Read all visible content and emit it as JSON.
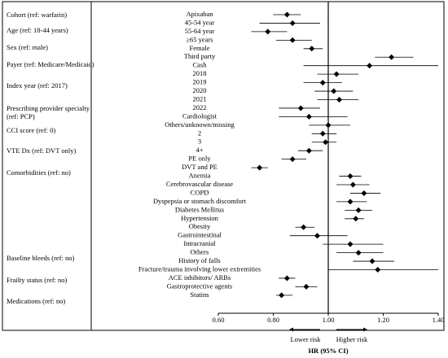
{
  "chart_data": {
    "type": "forest",
    "groups": [
      "Cohort (ref: warfarin)",
      "Age (ref: 18-44 years)",
      "Sex (ref: male)",
      "Payer (ref: Medicare/Medicaid)",
      "Index year (ref: 2017)",
      "Prescribing provider specialty (ref: PCP)",
      "CCI score (ref: 0)",
      "VTE Dx (ref: DVT only)",
      "Comorbidities (ref: no)",
      "Baseline bleeds (ref: no)",
      "Frailty status (ref: no)",
      "Medications (ref: no)"
    ],
    "rows": [
      {
        "label": "Apixaban",
        "value": 0.85,
        "lower": 0.8,
        "upper": 0.9
      },
      {
        "label": "45-54 year",
        "value": 0.87,
        "lower": 0.75,
        "upper": 0.97
      },
      {
        "label": "55-64 year",
        "value": 0.78,
        "lower": 0.72,
        "upper": 0.85
      },
      {
        "label": "≥65 years",
        "value": 0.87,
        "lower": 0.81,
        "upper": 0.94
      },
      {
        "label": "Female",
        "value": 0.94,
        "lower": 0.91,
        "upper": 0.98
      },
      {
        "label": "Third party",
        "value": 1.23,
        "lower": 1.17,
        "upper": 1.31
      },
      {
        "label": "Cash",
        "value": 1.15,
        "lower": 0.91,
        "upper": 1.4
      },
      {
        "label": "2018",
        "value": 1.03,
        "lower": 0.96,
        "upper": 1.11
      },
      {
        "label": "2019",
        "value": 0.98,
        "lower": 0.91,
        "upper": 1.05
      },
      {
        "label": "2020",
        "value": 1.02,
        "lower": 0.95,
        "upper": 1.09
      },
      {
        "label": "2021",
        "value": 1.04,
        "lower": 0.96,
        "upper": 1.11
      },
      {
        "label": "2022",
        "value": 0.9,
        "lower": 0.82,
        "upper": 0.97
      },
      {
        "label": "Cardiologist",
        "value": 0.93,
        "lower": 0.82,
        "upper": 1.07
      },
      {
        "label": "Others/unknown/missing",
        "value": 1.0,
        "lower": 0.93,
        "upper": 1.08
      },
      {
        "label": "2",
        "value": 0.98,
        "lower": 0.94,
        "upper": 1.03
      },
      {
        "label": "3",
        "value": 0.99,
        "lower": 0.94,
        "upper": 1.03
      },
      {
        "label": "4+",
        "value": 0.93,
        "lower": 0.89,
        "upper": 0.98
      },
      {
        "label": "PE only",
        "value": 0.87,
        "lower": 0.83,
        "upper": 0.92
      },
      {
        "label": "DVT and PE",
        "value": 0.75,
        "lower": 0.72,
        "upper": 0.78
      },
      {
        "label": "Anemia",
        "value": 1.08,
        "lower": 1.04,
        "upper": 1.12
      },
      {
        "label": "Cerebrovascular disease",
        "value": 1.09,
        "lower": 1.03,
        "upper": 1.15
      },
      {
        "label": "COPD",
        "value": 1.13,
        "lower": 1.08,
        "upper": 1.19
      },
      {
        "label": "Dyspepsia or stomach discomfort",
        "value": 1.08,
        "lower": 1.03,
        "upper": 1.14
      },
      {
        "label": "Diabetes Mellitus",
        "value": 1.11,
        "lower": 1.06,
        "upper": 1.16
      },
      {
        "label": "Hypertension",
        "value": 1.1,
        "lower": 1.06,
        "upper": 1.13
      },
      {
        "label": "Obesity",
        "value": 0.91,
        "lower": 0.88,
        "upper": 0.95
      },
      {
        "label": "Gastrointestinal",
        "value": 0.96,
        "lower": 0.86,
        "upper": 1.07
      },
      {
        "label": "Intracranial",
        "value": 1.08,
        "lower": 0.98,
        "upper": 1.2
      },
      {
        "label": "Others",
        "value": 1.11,
        "lower": 1.03,
        "upper": 1.2
      },
      {
        "label": "History of falls",
        "value": 1.16,
        "lower": 1.09,
        "upper": 1.24
      },
      {
        "label": "Fracture/trauma involving lower extremities",
        "value": 1.18,
        "lower": 1.0,
        "upper": 1.4
      },
      {
        "label": "ACE inhibitors/ ARBs",
        "value": 0.85,
        "lower": 0.82,
        "upper": 0.88
      },
      {
        "label": "Gastroprotective agents",
        "value": 0.92,
        "lower": 0.88,
        "upper": 0.96
      },
      {
        "label": "Statins",
        "value": 0.83,
        "lower": 0.81,
        "upper": 0.87
      }
    ],
    "xlim": [
      0.6,
      1.4
    ],
    "xticks": [
      {
        "value": 0.6,
        "label": "0.60"
      },
      {
        "value": 0.8,
        "label": "0.80"
      },
      {
        "value": 1,
        "label": "1.00"
      },
      {
        "value": 1.2,
        "label": "1.20"
      },
      {
        "value": 1.4,
        "label": "1.40"
      }
    ],
    "ref_line": 1,
    "lower_label": "Lower risk",
    "higher_label": "Higher risk",
    "xlabel": "HR (95% CI)",
    "color": "#000000"
  }
}
